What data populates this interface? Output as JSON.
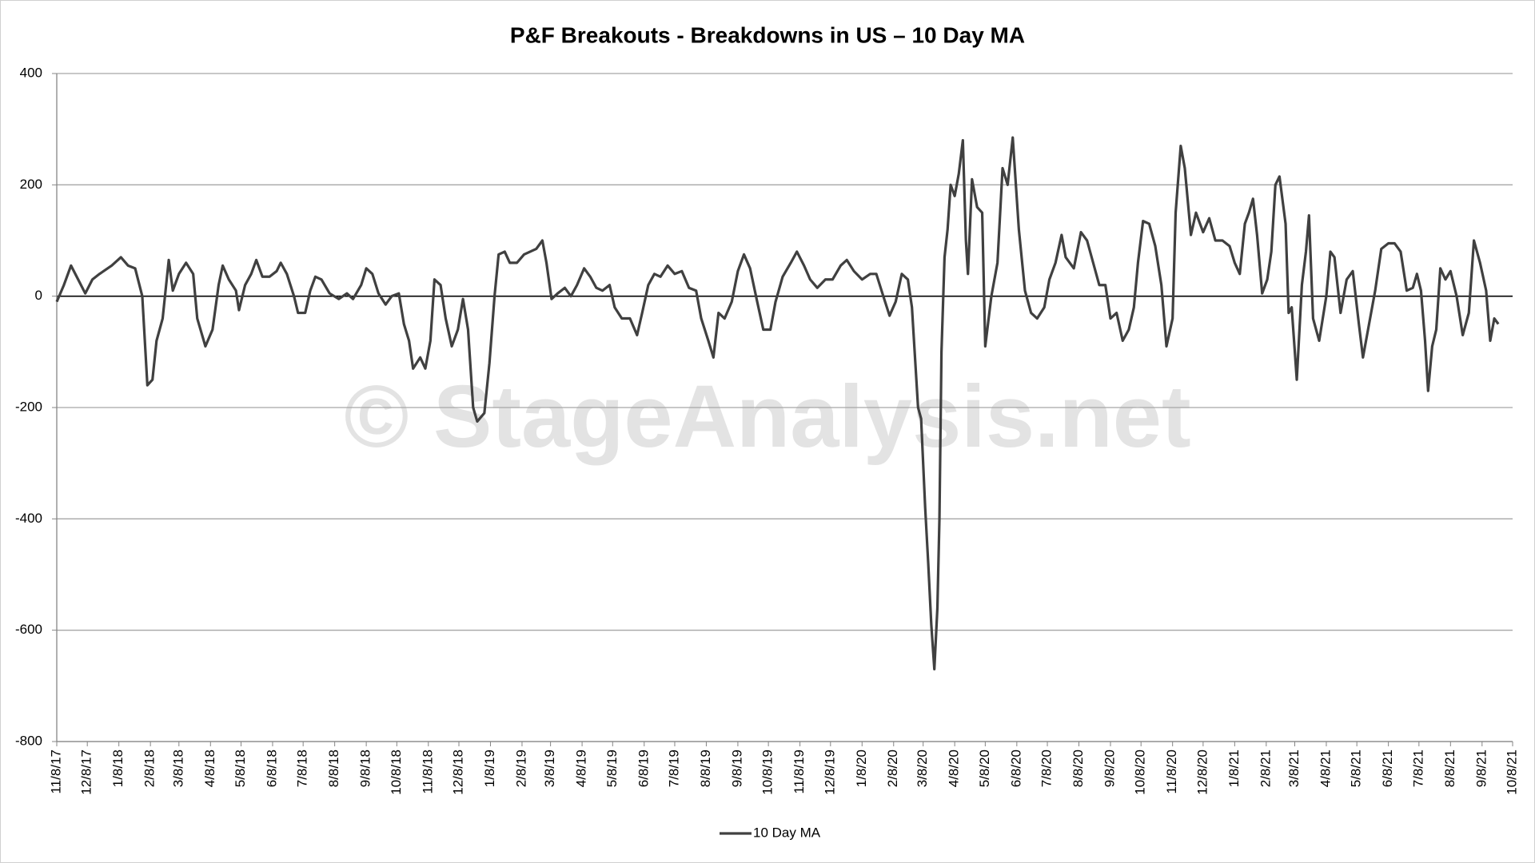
{
  "chart_data": {
    "type": "line",
    "title": "P&F Breakouts - Breakdowns in US – 10 Day MA",
    "watermark": "© StageAnalysis.net",
    "ylim": [
      -800,
      400
    ],
    "yticks": [
      -800,
      -600,
      -400,
      -200,
      0,
      200,
      400
    ],
    "xlim": [
      "11/8/17",
      "10/8/21"
    ],
    "xticks": [
      "11/8/17",
      "12/8/17",
      "1/8/18",
      "2/8/18",
      "3/8/18",
      "4/8/18",
      "5/8/18",
      "6/8/18",
      "7/8/18",
      "8/8/18",
      "9/8/18",
      "10/8/18",
      "11/8/18",
      "12/8/18",
      "1/8/19",
      "2/8/19",
      "3/8/19",
      "4/8/19",
      "5/8/19",
      "6/8/19",
      "7/8/19",
      "8/8/19",
      "9/8/19",
      "10/8/19",
      "11/8/19",
      "12/8/19",
      "1/8/20",
      "2/8/20",
      "3/8/20",
      "4/8/20",
      "5/8/20",
      "6/8/20",
      "7/8/20",
      "8/8/20",
      "9/8/20",
      "10/8/20",
      "11/8/20",
      "12/8/20",
      "1/8/21",
      "2/8/21",
      "3/8/21",
      "4/8/21",
      "5/8/21",
      "6/8/21",
      "7/8/21",
      "8/8/21",
      "9/8/21",
      "10/8/21"
    ],
    "grid": true,
    "legend": "bottom",
    "x": [
      "11/8/17",
      "11/15/17",
      "11/22/17",
      "11/29/17",
      "12/6/17",
      "12/13/17",
      "12/20/17",
      "1/1/18",
      "1/10/18",
      "1/17/18",
      "1/24/18",
      "1/31/18",
      "2/5/18",
      "2/10/18",
      "2/14/18",
      "2/20/18",
      "2/26/18",
      "3/2/18",
      "3/8/18",
      "3/15/18",
      "3/22/18",
      "3/26/18",
      "4/3/18",
      "4/10/18",
      "4/16/18",
      "4/20/18",
      "4/26/18",
      "5/3/18",
      "5/6/18",
      "5/12/18",
      "5/18/18",
      "5/23/18",
      "5/29/18",
      "6/5/18",
      "6/12/18",
      "6/16/18",
      "6/22/18",
      "6/29/18",
      "7/3/18",
      "7/10/18",
      "7/15/18",
      "7/20/18",
      "7/26/18",
      "8/3/18",
      "8/12/18",
      "8/20/18",
      "8/26/18",
      "9/3/18",
      "9/8/18",
      "9/14/18",
      "9/20/18",
      "9/27/18",
      "10/3/18",
      "10/10/18",
      "10/15/18",
      "10/20/18",
      "10/24/18",
      "10/31/18",
      "11/5/18",
      "11/10/18",
      "11/14/18",
      "11/20/18",
      "11/25/18",
      "12/1/18",
      "12/7/18",
      "12/12/18",
      "12/17/18",
      "12/22/18",
      "12/26/18",
      "1/2/19",
      "1/7/19",
      "1/12/19",
      "1/16/19",
      "1/22/19",
      "1/27/19",
      "2/3/19",
      "2/10/19",
      "2/16/19",
      "2/22/19",
      "2/28/19",
      "3/4/19",
      "3/9/19",
      "3/15/19",
      "3/22/19",
      "3/28/19",
      "4/3/19",
      "4/10/19",
      "4/16/19",
      "4/22/19",
      "4/28/19",
      "5/5/19",
      "5/10/19",
      "5/17/19",
      "5/25/19",
      "6/1/19",
      "6/6/19",
      "6/12/19",
      "6/18/19",
      "6/24/19",
      "7/1/19",
      "7/8/19",
      "7/15/19",
      "7/22/19",
      "7/29/19",
      "8/3/19",
      "8/10/19",
      "8/15/19",
      "8/20/19",
      "8/26/19",
      "9/2/19",
      "9/8/19",
      "9/14/19",
      "9/20/19",
      "9/27/19",
      "10/3/19",
      "10/10/19",
      "10/15/19",
      "10/22/19",
      "10/30/19",
      "11/5/19",
      "11/12/19",
      "11/18/19",
      "11/25/19",
      "12/3/19",
      "12/10/19",
      "12/18/19",
      "12/24/19",
      "12/31/19",
      "1/8/20",
      "1/16/20",
      "1/22/20",
      "1/28/20",
      "2/4/20",
      "2/10/20",
      "2/16/20",
      "2/22/20",
      "2/26/20",
      "3/3/20",
      "3/6/20",
      "3/10/20",
      "3/13/20",
      "3/16/20",
      "3/19/20",
      "3/22/20",
      "3/24/20",
      "3/26/20",
      "3/29/20",
      "4/1/20",
      "4/4/20",
      "4/8/20",
      "4/12/20",
      "4/16/20",
      "4/19/20",
      "4/21/20",
      "4/25/20",
      "4/30/20",
      "5/5/20",
      "5/8/20",
      "5/14/20",
      "5/20/20",
      "5/25/20",
      "5/30/20",
      "6/4/20",
      "6/10/20",
      "6/16/20",
      "6/22/20",
      "6/28/20",
      "7/5/20",
      "7/10/20",
      "7/16/20",
      "7/22/20",
      "7/26/20",
      "8/3/20",
      "8/10/20",
      "8/16/20",
      "8/22/20",
      "8/28/20",
      "9/3/20",
      "9/8/20",
      "9/14/20",
      "9/20/20",
      "9/26/20",
      "10/1/20",
      "10/5/20",
      "10/10/20",
      "10/16/20",
      "10/22/20",
      "10/28/20",
      "11/2/20",
      "11/8/20",
      "11/11/20",
      "11/16/20",
      "11/20/20",
      "11/26/20",
      "12/1/20",
      "12/8/20",
      "12/14/20",
      "12/20/20",
      "12/27/20",
      "1/3/21",
      "1/8/21",
      "1/13/21",
      "1/18/21",
      "1/22/21",
      "1/26/21",
      "1/30/21",
      "2/4/21",
      "2/9/21",
      "2/13/21",
      "2/17/21",
      "2/21/21",
      "2/27/21",
      "3/2/21",
      "3/5/21",
      "3/10/21",
      "3/15/21",
      "3/19/21",
      "3/22/21",
      "3/26/21",
      "4/1/21",
      "4/8/21",
      "4/12/21",
      "4/16/21",
      "4/22/21",
      "4/28/21",
      "5/4/21",
      "5/10/21",
      "5/14/21",
      "5/20/21",
      "5/26/21",
      "6/1/21",
      "6/8/21",
      "6/14/21",
      "6/20/21",
      "6/26/21",
      "7/2/21",
      "7/6/21",
      "7/10/21",
      "7/14/21",
      "7/17/21",
      "7/21/21",
      "7/25/21",
      "7/29/21",
      "8/3/21",
      "8/8/21",
      "8/14/21",
      "8/20/21",
      "8/26/21",
      "8/31/21",
      "9/6/21",
      "9/12/21",
      "9/16/21",
      "9/20/21",
      "9/24/21"
    ],
    "series": [
      {
        "name": "10 Day MA",
        "color": "#404040",
        "values": [
          -10,
          20,
          55,
          30,
          5,
          30,
          40,
          55,
          70,
          55,
          50,
          0,
          -160,
          -150,
          -80,
          -40,
          65,
          10,
          40,
          60,
          40,
          -40,
          -90,
          -60,
          20,
          55,
          30,
          10,
          -25,
          20,
          40,
          65,
          35,
          35,
          45,
          60,
          40,
          0,
          -30,
          -30,
          10,
          35,
          30,
          5,
          -5,
          5,
          -5,
          20,
          50,
          40,
          5,
          -15,
          0,
          5,
          -50,
          -80,
          -130,
          -110,
          -130,
          -80,
          30,
          20,
          -40,
          -90,
          -60,
          -5,
          -60,
          -200,
          -225,
          -210,
          -120,
          0,
          75,
          80,
          60,
          60,
          75,
          80,
          85,
          100,
          60,
          -5,
          5,
          15,
          0,
          20,
          50,
          35,
          15,
          10,
          20,
          -20,
          -40,
          -40,
          -70,
          -30,
          20,
          40,
          35,
          55,
          40,
          45,
          15,
          10,
          -40,
          -80,
          -110,
          -30,
          -40,
          -10,
          45,
          75,
          50,
          -10,
          -60,
          -60,
          -10,
          35,
          60,
          80,
          55,
          30,
          15,
          30,
          30,
          55,
          65,
          45,
          30,
          40,
          40,
          5,
          -35,
          -10,
          40,
          30,
          -20,
          -200,
          -220,
          -380,
          -480,
          -590,
          -670,
          -560,
          -400,
          -100,
          70,
          120,
          200,
          180,
          220,
          280,
          100,
          40,
          210,
          160,
          150,
          -90,
          0,
          60,
          230,
          200,
          285,
          120,
          10,
          -30,
          -40,
          -20,
          30,
          60,
          110,
          70,
          50,
          115,
          100,
          60,
          20,
          20,
          -40,
          -30,
          -80,
          -60,
          -20,
          60,
          135,
          130,
          90,
          20,
          -90,
          -40,
          150,
          270,
          230,
          110,
          150,
          115,
          140,
          100,
          100,
          90,
          60,
          40,
          130,
          150,
          175,
          110,
          5,
          30,
          80,
          200,
          215,
          130,
          -30,
          -20,
          -150,
          20,
          80,
          145,
          -40,
          -80,
          0,
          80,
          70,
          -30,
          30,
          45,
          -50,
          -110,
          -50,
          10,
          85,
          95,
          95,
          80,
          10,
          15,
          40,
          10,
          -80,
          -170,
          -90,
          -60,
          50,
          30,
          45,
          0,
          -70,
          -30,
          100,
          60,
          10,
          -80,
          -40,
          -50
        ]
      }
    ]
  }
}
